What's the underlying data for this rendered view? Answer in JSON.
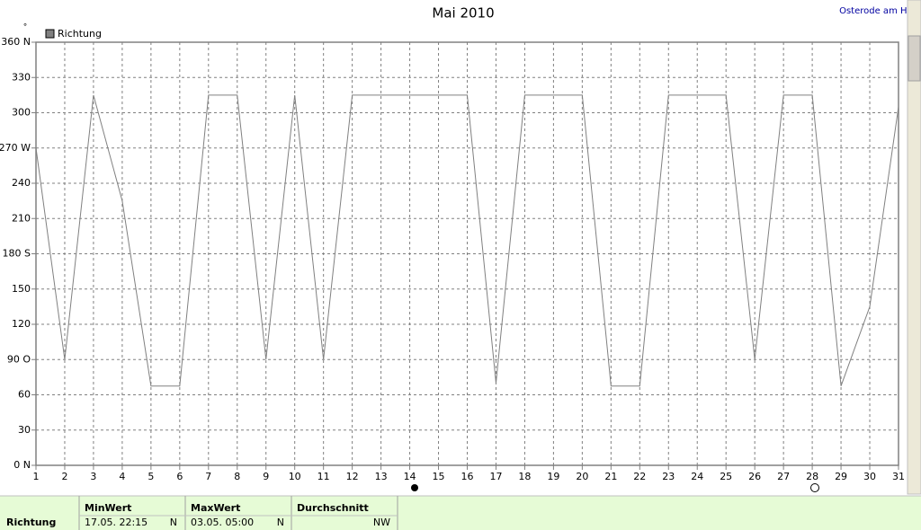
{
  "chart_data": {
    "type": "line",
    "title": "Mai 2010",
    "location": "Osterode am Harz",
    "y_label": "°",
    "x": [
      1,
      2,
      3,
      4,
      5,
      6,
      7,
      8,
      9,
      10,
      11,
      12,
      13,
      14,
      15,
      16,
      17,
      18,
      19,
      20,
      21,
      22,
      23,
      24,
      25,
      26,
      27,
      28,
      29,
      30,
      31
    ],
    "series": [
      {
        "name": "Richtung",
        "color": "#808080",
        "values": [
          270,
          90,
          315,
          225,
          67.5,
          67.5,
          315,
          315,
          90,
          315,
          90,
          315,
          315,
          315,
          315,
          315,
          70,
          315,
          315,
          315,
          67.5,
          67.5,
          315,
          315,
          315,
          90,
          315,
          315,
          67.5,
          135,
          305
        ]
      }
    ],
    "xlim": [
      1,
      31
    ],
    "xticks": [
      1,
      2,
      3,
      4,
      5,
      6,
      7,
      8,
      9,
      10,
      11,
      12,
      13,
      14,
      15,
      16,
      17,
      18,
      19,
      20,
      21,
      22,
      23,
      24,
      25,
      26,
      27,
      28,
      29,
      30,
      31
    ],
    "ylim": [
      0,
      360
    ],
    "yticks": [
      {
        "value": 0,
        "label": "0 N"
      },
      30,
      60,
      {
        "value": 90,
        "label": "90 O"
      },
      120,
      150,
      {
        "value": 180,
        "label": "180 S"
      },
      210,
      240,
      {
        "value": 270,
        "label": "270 W"
      },
      300,
      330,
      {
        "value": 360,
        "label": "360 N"
      }
    ],
    "grid": true
  },
  "stats": {
    "row_label": "Richtung",
    "columns": [
      {
        "header": "MinWert",
        "time": "17.05.  22:15",
        "dir": "N"
      },
      {
        "header": "MaxWert",
        "time": "03.05.  05:00",
        "dir": "N"
      },
      {
        "header": "Durchschnitt",
        "dir": "NW"
      }
    ]
  }
}
